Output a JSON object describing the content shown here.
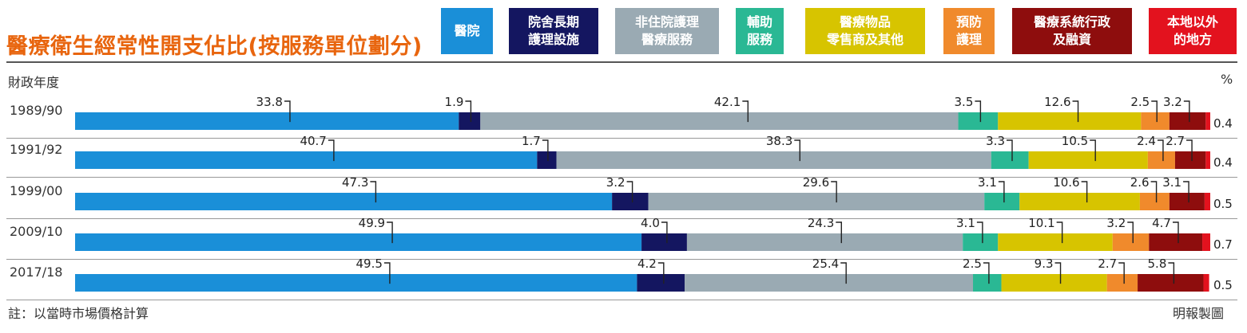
{
  "title": "醫療衛生經常性開支佔比(按服務單位劃分)",
  "y_caption": "財政年度",
  "unit": "%",
  "note": "註：以當時市場價格計算",
  "credit": "明報製圖",
  "chart_data": {
    "type": "bar",
    "stacked": true,
    "orientation": "horizontal",
    "categories": [
      "1989/90",
      "1991/92",
      "1999/00",
      "2009/10",
      "2017/18"
    ],
    "series": [
      {
        "name": "醫院",
        "lines": [
          "醫院"
        ],
        "color": "#1a8fd8",
        "values": [
          33.8,
          40.7,
          47.3,
          49.9,
          49.5
        ]
      },
      {
        "name": "院舍長期護理設施",
        "lines": [
          "院舍長期",
          "護理設施"
        ],
        "color": "#141660",
        "values": [
          1.9,
          1.7,
          3.2,
          4.0,
          4.2
        ]
      },
      {
        "name": "非住院護理醫療服務",
        "lines": [
          "非住院護理",
          "醫療服務"
        ],
        "color": "#9aaab3",
        "values": [
          42.1,
          38.3,
          29.6,
          24.3,
          25.4
        ]
      },
      {
        "name": "輔助服務",
        "lines": [
          "輔助",
          "服務"
        ],
        "color": "#2ab894",
        "values": [
          3.5,
          3.3,
          3.1,
          3.1,
          2.5
        ]
      },
      {
        "name": "醫療物品零售商及其他",
        "lines": [
          "醫療物品",
          "零售商及其他"
        ],
        "color": "#d7c400",
        "values": [
          12.6,
          10.5,
          10.6,
          10.1,
          9.3
        ]
      },
      {
        "name": "預防護理",
        "lines": [
          "預防",
          "護理"
        ],
        "color": "#f08a2c",
        "values": [
          2.5,
          2.4,
          2.6,
          3.2,
          2.7
        ]
      },
      {
        "name": "醫療系統行政及融資",
        "lines": [
          "醫療系統行政",
          "及融資"
        ],
        "color": "#8e0d0d",
        "values": [
          3.2,
          2.7,
          3.1,
          4.7,
          5.8
        ]
      },
      {
        "name": "本地以外的地方",
        "lines": [
          "本地以外",
          "的地方"
        ],
        "color": "#e3121e",
        "values": [
          0.4,
          0.4,
          0.5,
          0.7,
          0.5
        ]
      }
    ],
    "xlim": [
      0,
      100
    ],
    "legend": "top"
  }
}
